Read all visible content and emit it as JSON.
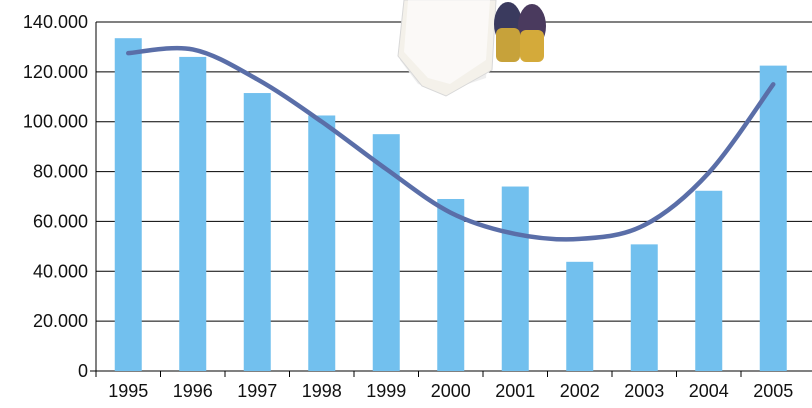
{
  "chart_data": {
    "type": "bar",
    "categories": [
      "1995",
      "1996",
      "1997",
      "1998",
      "1999",
      "2000",
      "2001",
      "2002",
      "2003",
      "2004",
      "2005"
    ],
    "values": [
      133500,
      126000,
      111500,
      102500,
      95000,
      69000,
      74000,
      43800,
      50800,
      72300,
      122500
    ],
    "trendline": {
      "type": "polynomial",
      "values": [
        127500,
        129000,
        117000,
        100000,
        81000,
        63500,
        55000,
        53000,
        58500,
        79500,
        115000
      ]
    },
    "ylim": [
      0,
      140000
    ],
    "yticks": [
      0,
      20000,
      40000,
      60000,
      80000,
      100000,
      120000,
      140000
    ],
    "ytick_labels": [
      "0",
      "20.000",
      "40.000",
      "60.000",
      "80.000",
      "100.000",
      "120.000",
      "140.000"
    ],
    "title": "",
    "xlabel": "",
    "ylabel": "",
    "grid": true,
    "legend": "none",
    "colors": {
      "bar": "#72c0ee",
      "trend": "#5a6ea8",
      "grid": "#000000"
    }
  },
  "decoration": {
    "icon": "book-cover-photo"
  }
}
